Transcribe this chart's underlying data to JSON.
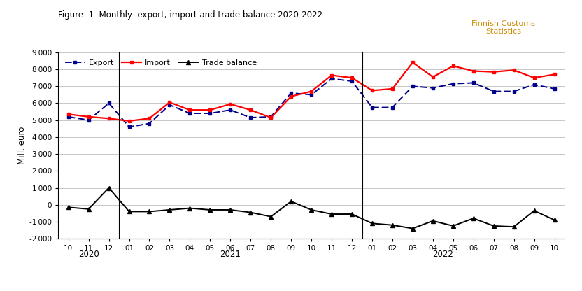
{
  "title": "Figure  1. Monthly  export, import and trade balance 2020-2022",
  "watermark_line1": "Finnish Customs",
  "watermark_line2": "Statistics",
  "ylabel": "Mill. euro",
  "ylim": [
    -2000,
    9000
  ],
  "yticks": [
    -2000,
    -1000,
    0,
    1000,
    2000,
    3000,
    4000,
    5000,
    6000,
    7000,
    8000,
    9000
  ],
  "x_labels": [
    "10",
    "11",
    "12",
    "01",
    "02",
    "03",
    "04",
    "05",
    "06",
    "07",
    "08",
    "09",
    "10",
    "11",
    "12",
    "01",
    "02",
    "03",
    "04",
    "05",
    "06",
    "07",
    "08",
    "09",
    "10"
  ],
  "year_dividers_after_idx": [
    2,
    14
  ],
  "year_label_centers": [
    1.0,
    8.0,
    18.5
  ],
  "year_texts": [
    "2020",
    "2021",
    "2022"
  ],
  "export": [
    5200,
    5000,
    6000,
    4600,
    4800,
    5900,
    5400,
    5400,
    5600,
    5150,
    5200,
    6600,
    6500,
    7450,
    7300,
    5750,
    5750,
    7000,
    6900,
    7150,
    7200,
    6700,
    6700,
    7100,
    6850
  ],
  "import": [
    5350,
    5200,
    5100,
    4950,
    5100,
    6050,
    5600,
    5600,
    5950,
    5600,
    5150,
    6400,
    6700,
    7650,
    7500,
    6750,
    6850,
    8400,
    7550,
    8200,
    7900,
    7850,
    7950,
    7500,
    7700
  ],
  "trade_balance": [
    -150,
    -250,
    1000,
    -400,
    -400,
    -300,
    -200,
    -300,
    -300,
    -450,
    -700,
    200,
    -300,
    -550,
    -550,
    -1100,
    -1200,
    -1400,
    -950,
    -1250,
    -800,
    -1250,
    -1300,
    -350,
    -900
  ],
  "export_color": "#00008B",
  "import_color": "#FF0000",
  "balance_color": "#000000",
  "background_color": "#FFFFFF",
  "plot_bg_color": "#FFFFFF",
  "grid_color": "#B0B0B0",
  "title_color": "#000000",
  "watermark_color": "#CC8800"
}
